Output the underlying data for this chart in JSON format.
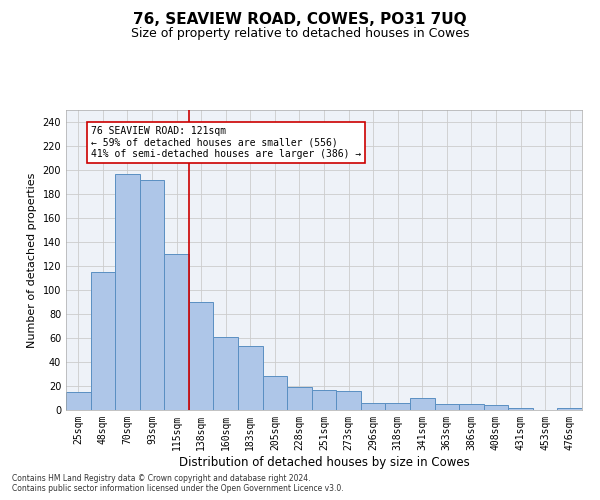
{
  "title": "76, SEAVIEW ROAD, COWES, PO31 7UQ",
  "subtitle": "Size of property relative to detached houses in Cowes",
  "xlabel": "Distribution of detached houses by size in Cowes",
  "ylabel": "Number of detached properties",
  "categories": [
    "25sqm",
    "48sqm",
    "70sqm",
    "93sqm",
    "115sqm",
    "138sqm",
    "160sqm",
    "183sqm",
    "205sqm",
    "228sqm",
    "251sqm",
    "273sqm",
    "296sqm",
    "318sqm",
    "341sqm",
    "363sqm",
    "386sqm",
    "408sqm",
    "431sqm",
    "453sqm",
    "476sqm"
  ],
  "values": [
    15,
    115,
    197,
    192,
    130,
    90,
    61,
    53,
    28,
    19,
    17,
    16,
    6,
    6,
    10,
    5,
    5,
    4,
    2,
    0,
    2
  ],
  "bar_color": "#aec6e8",
  "bar_edge_color": "#5a8fc2",
  "vline_x": 4.5,
  "vline_color": "#cc0000",
  "annotation_text": "76 SEAVIEW ROAD: 121sqm\n← 59% of detached houses are smaller (556)\n41% of semi-detached houses are larger (386) →",
  "annotation_box_color": "#ffffff",
  "annotation_box_edge_color": "#cc0000",
  "ylim": [
    0,
    250
  ],
  "yticks": [
    0,
    20,
    40,
    60,
    80,
    100,
    120,
    140,
    160,
    180,
    200,
    220,
    240
  ],
  "grid_color": "#cccccc",
  "background_color": "#eef2f8",
  "footer_line1": "Contains HM Land Registry data © Crown copyright and database right 2024.",
  "footer_line2": "Contains public sector information licensed under the Open Government Licence v3.0.",
  "title_fontsize": 11,
  "subtitle_fontsize": 9,
  "xlabel_fontsize": 8.5,
  "ylabel_fontsize": 8,
  "tick_fontsize": 7,
  "annotation_fontsize": 7,
  "footer_fontsize": 5.5
}
